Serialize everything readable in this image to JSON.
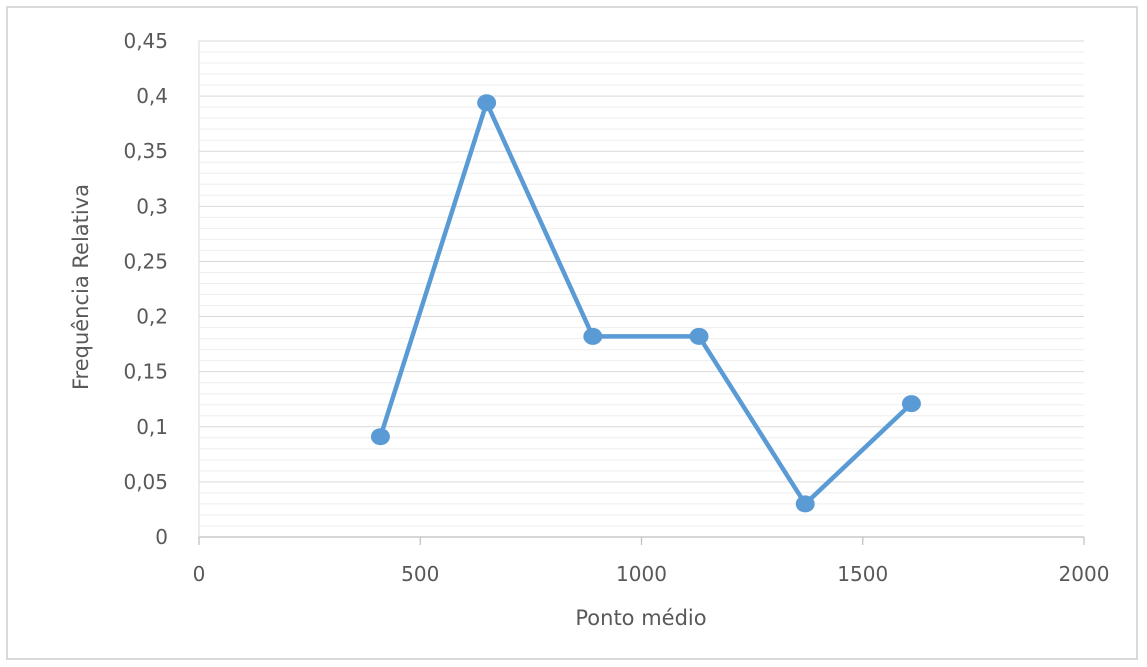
{
  "chart_data": {
    "type": "line",
    "title": "",
    "xlabel": "Ponto médio",
    "ylabel": "Frequência Relativa",
    "xlim": [
      0,
      2000
    ],
    "ylim": [
      0,
      0.45
    ],
    "x_ticks": [
      0,
      500,
      1000,
      1500,
      2000
    ],
    "x_tick_labels": [
      "0",
      "500",
      "1000",
      "1500",
      "2000"
    ],
    "y_ticks": [
      0,
      0.05,
      0.1,
      0.15,
      0.2,
      0.25,
      0.3,
      0.35,
      0.4,
      0.45
    ],
    "y_tick_labels": [
      "0",
      "0,05",
      "0,1",
      "0,15",
      "0,2",
      "0,25",
      "0,3",
      "0,35",
      "0,4",
      "0,45"
    ],
    "grid": true,
    "series": [
      {
        "color": "#5b9bd5",
        "points": [
          {
            "x": 410,
            "y": 0.091
          },
          {
            "x": 650,
            "y": 0.394
          },
          {
            "x": 890,
            "y": 0.182
          },
          {
            "x": 1130,
            "y": 0.182
          },
          {
            "x": 1370,
            "y": 0.03
          },
          {
            "x": 1610,
            "y": 0.121
          }
        ]
      }
    ]
  }
}
